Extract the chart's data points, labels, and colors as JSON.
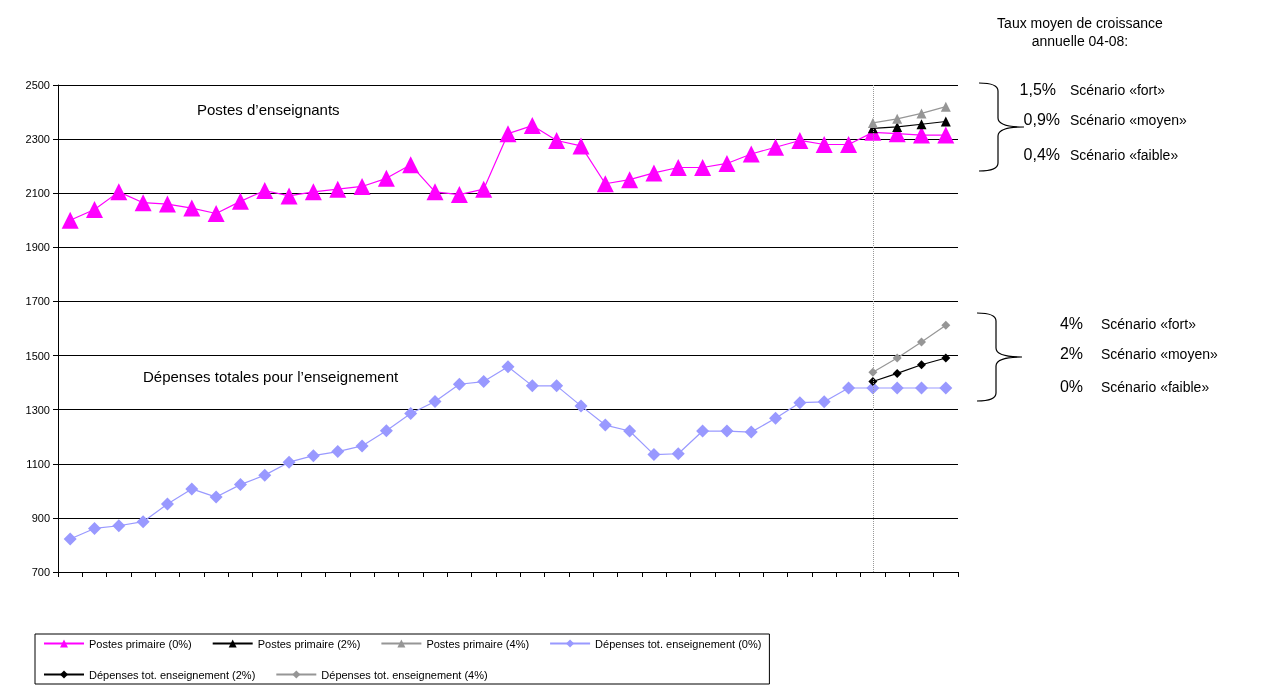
{
  "chart_data": {
    "type": "line",
    "categories": [
      null,
      null,
      null,
      null,
      null,
      null,
      null,
      null,
      null,
      null,
      null,
      null,
      null,
      null,
      null,
      null,
      null,
      null,
      null,
      null,
      null,
      null,
      null,
      null,
      null,
      null,
      null,
      null,
      null,
      null,
      null,
      null,
      null,
      null,
      null,
      null,
      null
    ],
    "series": [
      {
        "name": "Postes primaire (0%)",
        "color": "#ff00ff",
        "marker": "triangle",
        "values": [
          2000,
          2040,
          2105,
          2065,
          2060,
          2045,
          2025,
          2070,
          2110,
          2090,
          2105,
          2115,
          2125,
          2155,
          2205,
          2105,
          2095,
          2115,
          2320,
          2350,
          2295,
          2275,
          2135,
          2150,
          2175,
          2195,
          2195,
          2210,
          2245,
          2270,
          2295,
          2280,
          2280,
          2325,
          2320,
          2315,
          2315
        ]
      },
      {
        "name": "Postes primaire (2%)",
        "color": "#000000",
        "marker": "triangle",
        "values": [
          null,
          null,
          null,
          null,
          null,
          null,
          null,
          null,
          null,
          null,
          null,
          null,
          null,
          null,
          null,
          null,
          null,
          null,
          null,
          null,
          null,
          null,
          null,
          null,
          null,
          null,
          null,
          null,
          null,
          null,
          null,
          null,
          null,
          2340,
          2345,
          2355,
          2365
        ]
      },
      {
        "name": "Postes primaire (4%)",
        "color": "#969696",
        "marker": "triangle",
        "values": [
          null,
          null,
          null,
          null,
          null,
          null,
          null,
          null,
          null,
          null,
          null,
          null,
          null,
          null,
          null,
          null,
          null,
          null,
          null,
          null,
          null,
          null,
          null,
          null,
          null,
          null,
          null,
          null,
          null,
          null,
          null,
          null,
          null,
          2360,
          2375,
          2395,
          2420
        ]
      },
      {
        "name": "Dépenses tot. enseignement (0%)",
        "color": "#9999ff",
        "marker": "diamond",
        "values": [
          822,
          861,
          871,
          886,
          951,
          1007,
          977,
          1023,
          1058,
          1106,
          1130,
          1145,
          1166,
          1222,
          1286,
          1330,
          1394,
          1404,
          1459,
          1388,
          1388,
          1314,
          1243,
          1221,
          1134,
          1137,
          1221,
          1221,
          1217,
          1268,
          1326,
          1329,
          1380,
          1380,
          1380,
          1380,
          1380
        ]
      },
      {
        "name": "Dépenses tot. enseignement (2%)",
        "color": "#000000",
        "marker": "diamond",
        "values": [
          null,
          null,
          null,
          null,
          null,
          null,
          null,
          null,
          null,
          null,
          null,
          null,
          null,
          null,
          null,
          null,
          null,
          null,
          null,
          null,
          null,
          null,
          null,
          null,
          null,
          null,
          null,
          null,
          null,
          null,
          null,
          null,
          null,
          1404,
          1434,
          1466,
          1491
        ]
      },
      {
        "name": "Dépenses tot. enseignement (4%)",
        "color": "#969696",
        "marker": "diamond",
        "values": [
          null,
          null,
          null,
          null,
          null,
          null,
          null,
          null,
          null,
          null,
          null,
          null,
          null,
          null,
          null,
          null,
          null,
          null,
          null,
          null,
          null,
          null,
          null,
          null,
          null,
          null,
          null,
          null,
          null,
          null,
          null,
          null,
          null,
          1438,
          1491,
          1550,
          1612
        ]
      }
    ],
    "ylim": [
      700,
      2500
    ],
    "yticks": [
      700,
      900,
      1100,
      1300,
      1500,
      1700,
      1900,
      2100,
      2300,
      2500
    ],
    "grid": "y",
    "legend": "bottom",
    "line_style": "solid",
    "annotations": [
      "Postes d’enseignants",
      "Dépenses totales pour l’enseignement",
      "Taux moyen de croissance\nannuelle 04-08:",
      "1,5%",
      "Scénario «fort»",
      "0,9%",
      "Scénario «moyen»",
      "0,4%",
      "Scénario «faible»",
      "4%",
      "Scénario «fort»",
      "2%",
      "Scénario «moyen»",
      "0%",
      "Scénario «faible»"
    ]
  }
}
